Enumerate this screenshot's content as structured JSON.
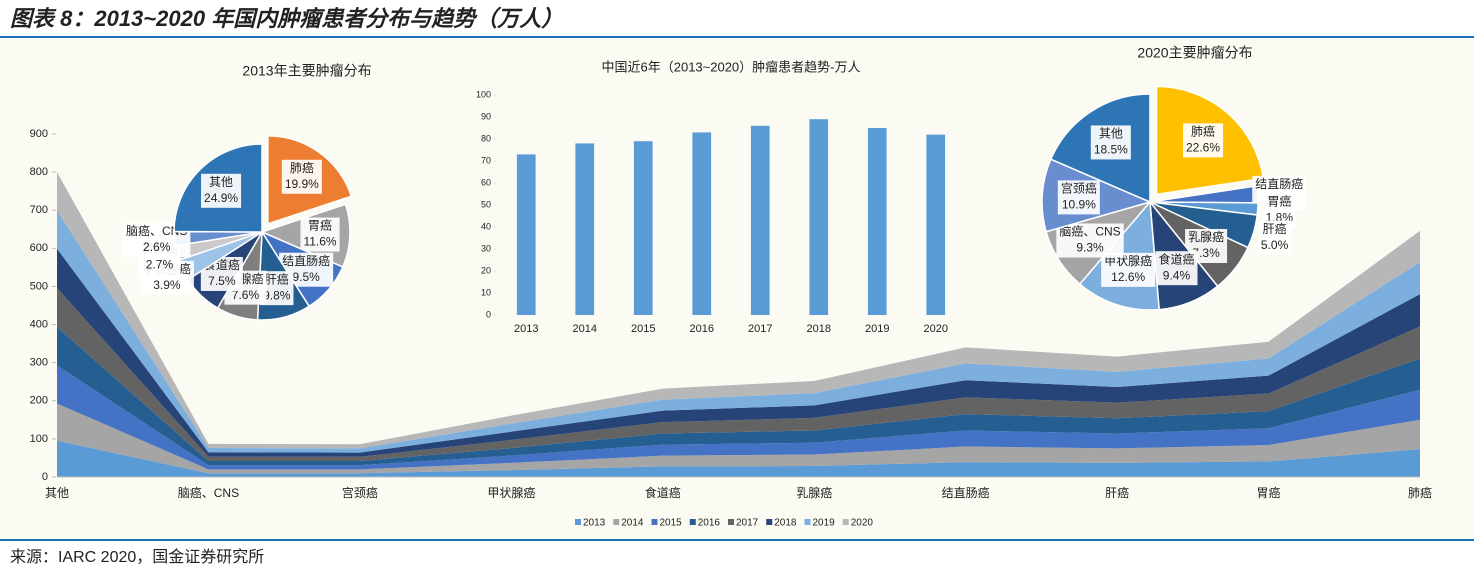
{
  "header": {
    "title": "图表 8：2013~2020 年国内肿瘤患者分布与趋势（万人）"
  },
  "chart_data": [
    {
      "type": "area",
      "stacked": true,
      "legend": "bottom",
      "categories": [
        "其他",
        "脑癌、CNS",
        "宫颈癌",
        "甲状腺癌",
        "食道癌",
        "乳腺癌",
        "结直肠癌",
        "肝癌",
        "胃癌",
        "肺癌"
      ],
      "ylim": [
        0,
        900
      ],
      "yticks": [
        0,
        100,
        200,
        300,
        400,
        500,
        600,
        700,
        800,
        900
      ],
      "series": [
        {
          "name": "2013",
          "color": "#5b9bd5",
          "values": [
            95,
            10,
            10,
            18,
            28,
            29,
            39,
            37,
            41,
            73
          ]
        },
        {
          "name": "2014",
          "color": "#a5a5a5",
          "values": [
            98,
            10,
            10,
            19,
            28,
            30,
            41,
            38,
            43,
            77
          ]
        },
        {
          "name": "2015",
          "color": "#4472c4",
          "values": [
            100,
            11,
            11,
            19,
            29,
            31,
            42,
            39,
            44,
            79
          ]
        },
        {
          "name": "2016",
          "color": "#255e91",
          "values": [
            101,
            11,
            11,
            20,
            29,
            32,
            43,
            40,
            45,
            82
          ]
        },
        {
          "name": "2017",
          "color": "#636363",
          "values": [
            102,
            11,
            11,
            21,
            30,
            33,
            44,
            41,
            46,
            84
          ]
        },
        {
          "name": "2018",
          "color": "#264478",
          "values": [
            103,
            12,
            11,
            22,
            30,
            33,
            45,
            41,
            47,
            85
          ]
        },
        {
          "name": "2019",
          "color": "#7cafdd",
          "values": [
            101,
            11,
            11,
            21,
            29,
            32,
            44,
            40,
            45,
            84
          ]
        },
        {
          "name": "2020",
          "color": "#b7b7b7",
          "values": [
            100,
            11,
            11,
            21,
            29,
            32,
            42,
            40,
            44,
            82
          ]
        }
      ]
    },
    {
      "type": "pie",
      "title": "2013年主要肿瘤分布",
      "categories": [
        "肺癌",
        "胃癌",
        "结直肠癌",
        "肝癌",
        "乳腺癌",
        "食道癌",
        "甲状腺癌",
        "宫颈癌",
        "脑癌、CNS",
        "其他"
      ],
      "values": [
        19.9,
        11.6,
        9.5,
        9.8,
        7.6,
        7.5,
        3.9,
        2.7,
        2.6,
        24.9
      ],
      "value_labels": [
        "19.9%",
        "11.6%",
        "9.5%",
        "9.8%",
        "7.6%",
        "7.5%",
        "3.9%",
        "2.7%",
        "2.6%",
        "24.9%"
      ],
      "colors": [
        "#ed7d31",
        "#a5a5a5",
        "#4472c4",
        "#255e91",
        "#7f7f7f",
        "#264478",
        "#9dc3e6",
        "#c9c9c9",
        "#698ed0",
        "#2e75b6"
      ]
    },
    {
      "type": "bar",
      "title": "中国近6年（2013~2020）肿瘤患者趋势-万人",
      "categories": [
        "2013",
        "2014",
        "2015",
        "2016",
        "2017",
        "2018",
        "2019",
        "2020"
      ],
      "values": [
        73,
        78,
        79,
        83,
        86,
        89,
        85,
        82
      ],
      "color": "#5b9bd5",
      "ylim": [
        0,
        100
      ],
      "yticks": [
        0,
        10,
        20,
        30,
        40,
        50,
        60,
        70,
        80,
        90,
        100
      ]
    },
    {
      "type": "pie",
      "title": "2020主要肿瘤分布",
      "categories": [
        "肺癌",
        "结直肠癌",
        "胃癌",
        "肝癌",
        "乳腺癌",
        "食道癌",
        "甲状腺癌",
        "脑癌、CNS",
        "宫颈癌",
        "其他"
      ],
      "values": [
        22.6,
        2.5,
        1.8,
        5.0,
        7.3,
        9.4,
        12.6,
        9.3,
        10.9,
        18.5
      ],
      "value_labels": [
        "22.6%",
        "2.5%",
        "1.8%",
        "5.0%",
        "7.3%",
        "9.4%",
        "12.6%",
        "9.3%",
        "10.9%",
        "18.5%"
      ],
      "colors": [
        "#ffc000",
        "#4472c4",
        "#5b9bd5",
        "#255e91",
        "#636363",
        "#264478",
        "#7cafdd",
        "#a5a5a5",
        "#698ed0",
        "#2e75b6"
      ]
    }
  ],
  "footer": {
    "source": "来源：IARC 2020，国金证券研究所"
  }
}
